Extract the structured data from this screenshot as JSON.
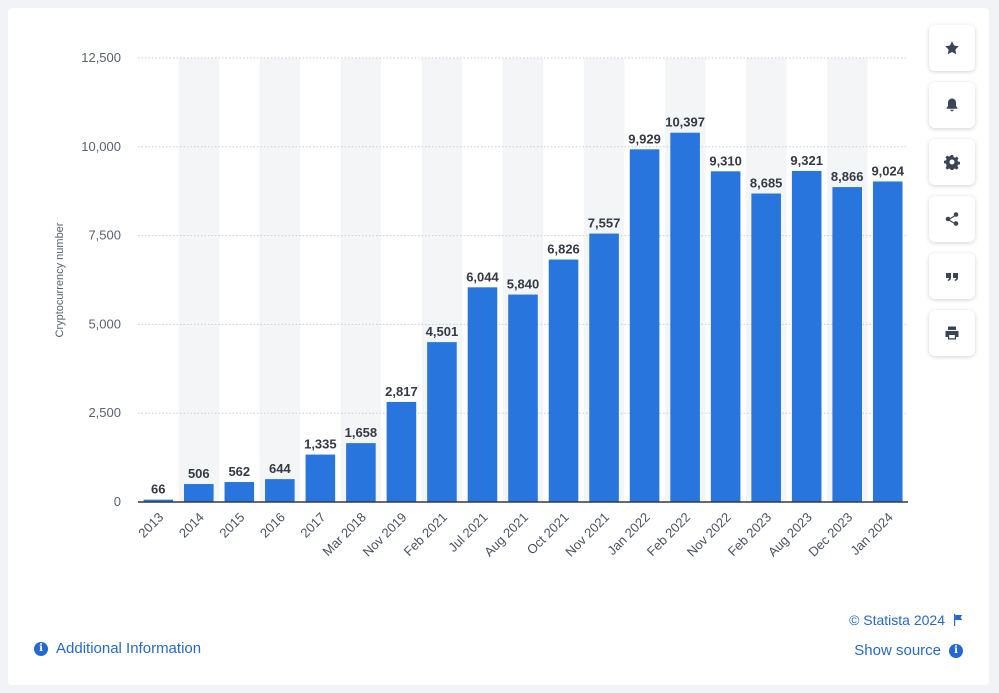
{
  "chart_data": {
    "type": "bar",
    "ylabel": "Cryptocurrency number",
    "ylim": [
      0,
      12500
    ],
    "yticks": [
      "0",
      "2,500",
      "5,000",
      "7,500",
      "10,000",
      "12,500"
    ],
    "ytick_values": [
      0,
      2500,
      5000,
      7500,
      10000,
      12500
    ],
    "categories": [
      "2013",
      "2014",
      "2015",
      "2016",
      "2017",
      "Mar 2018",
      "Nov 2019",
      "Feb 2021",
      "Jul 2021",
      "Aug 2021",
      "Oct 2021",
      "Nov 2021",
      "Jan 2022",
      "Feb 2022",
      "Nov 2022",
      "Feb 2023",
      "Aug 2023",
      "Dec 2023",
      "Jan 2024"
    ],
    "values": [
      66,
      506,
      562,
      644,
      1335,
      1658,
      2817,
      4501,
      6044,
      5840,
      6826,
      7557,
      9929,
      10397,
      9310,
      8685,
      9321,
      8866,
      9024
    ],
    "value_labels": [
      "66",
      "506",
      "562",
      "644",
      "1,335",
      "1,658",
      "2,817",
      "4,501",
      "6,044",
      "5,840",
      "6,826",
      "7,557",
      "9,929",
      "10,397",
      "9,310",
      "8,685",
      "9,321",
      "8,866",
      "9,024"
    ],
    "bar_color": "#2876dd",
    "grid": true
  },
  "toolbar": {
    "buttons": [
      {
        "name": "favorite-button",
        "icon": "star-icon"
      },
      {
        "name": "notification-button",
        "icon": "bell-icon"
      },
      {
        "name": "settings-button",
        "icon": "gear-icon"
      },
      {
        "name": "share-button",
        "icon": "share-icon"
      },
      {
        "name": "cite-button",
        "icon": "quote-icon"
      },
      {
        "name": "print-button",
        "icon": "printer-icon"
      }
    ]
  },
  "footer": {
    "additional_info": "Additional Information",
    "credit": "© Statista 2024",
    "show_source": "Show source"
  },
  "colors": {
    "accent": "#2468d4",
    "bar": "#2876dd",
    "stripe": "#f4f5f7"
  }
}
